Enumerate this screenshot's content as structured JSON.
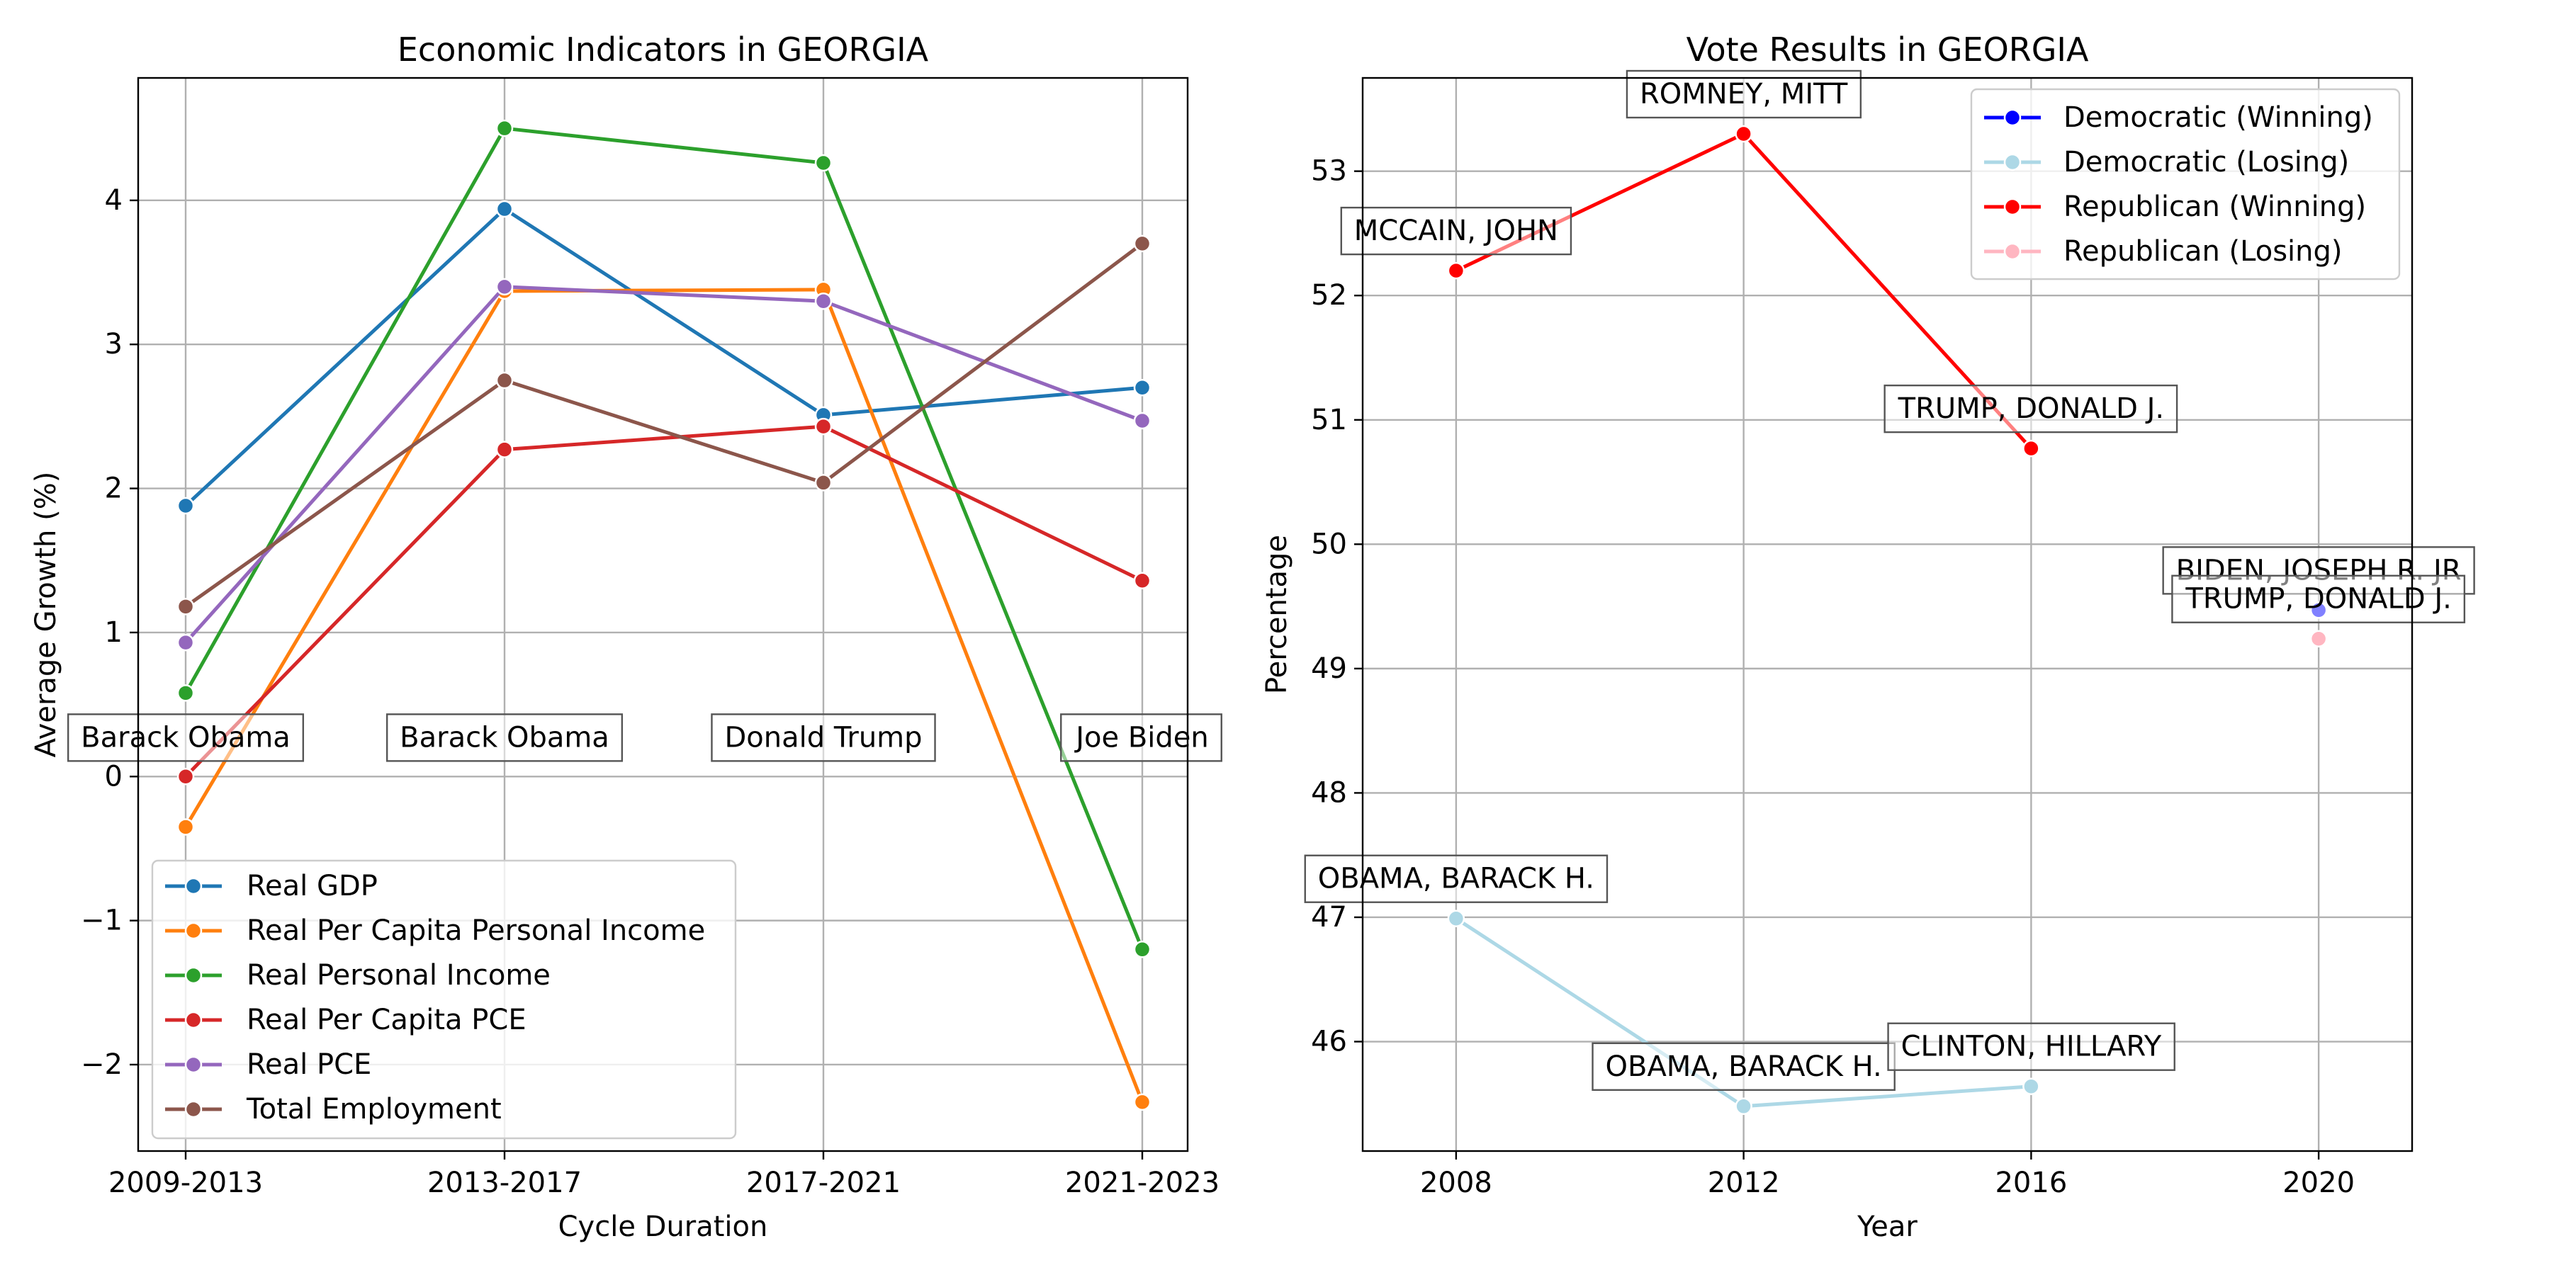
{
  "chart_data": [
    {
      "type": "line",
      "title": "Economic Indicators in GEORGIA",
      "xlabel": "Cycle Duration",
      "ylabel": "Average Growth (%)",
      "categories": [
        "2009-2013",
        "2013-2017",
        "2017-2021",
        "2021-2023"
      ],
      "ylim": [
        -2.6,
        4.85
      ],
      "yticks": [
        -2,
        -1,
        0,
        1,
        2,
        3,
        4
      ],
      "ytick_labels": [
        "−2",
        "−1",
        "0",
        "1",
        "2",
        "3",
        "4"
      ],
      "grid": true,
      "legend_position": "lower-left",
      "series": [
        {
          "name": "Real GDP",
          "color": "#1f77b4",
          "values": [
            1.88,
            3.94,
            2.51,
            2.7
          ]
        },
        {
          "name": "Real Per Capita Personal Income",
          "color": "#ff7f0e",
          "values": [
            -0.35,
            3.37,
            3.38,
            -2.26
          ]
        },
        {
          "name": "Real Personal Income",
          "color": "#2ca02c",
          "values": [
            0.58,
            4.5,
            4.26,
            -1.2
          ]
        },
        {
          "name": "Real Per Capita PCE",
          "color": "#d62728",
          "values": [
            0.0,
            2.27,
            2.43,
            1.36
          ]
        },
        {
          "name": "Real PCE",
          "color": "#9467bd",
          "values": [
            0.93,
            3.4,
            3.3,
            2.47
          ]
        },
        {
          "name": "Total Employment",
          "color": "#8c564b",
          "values": [
            1.18,
            2.75,
            2.04,
            3.7
          ]
        }
      ],
      "annotations": [
        {
          "text": "Barack Obama",
          "category": "2009-2013",
          "y": 0.27
        },
        {
          "text": "Barack Obama",
          "category": "2013-2017",
          "y": 0.27
        },
        {
          "text": "Donald Trump",
          "category": "2017-2021",
          "y": 0.27
        },
        {
          "text": "Joe Biden",
          "category": "2021-2023",
          "y": 0.27
        }
      ]
    },
    {
      "type": "line",
      "title": "Vote Results in GEORGIA",
      "xlabel": "Year",
      "ylabel": "Percentage",
      "x": [
        2008,
        2012,
        2016,
        2020
      ],
      "xlim": [
        2006.7,
        2021.3
      ],
      "ylim": [
        45.12,
        53.75
      ],
      "yticks": [
        46,
        47,
        48,
        49,
        50,
        51,
        52,
        53
      ],
      "grid": true,
      "legend_position": "top-right",
      "series": [
        {
          "name": "Democratic (Winning)",
          "color": "#0000ff",
          "points": [
            [
              2020,
              49.47
            ]
          ]
        },
        {
          "name": "Democratic (Losing)",
          "color": "#add8e6",
          "points": [
            [
              2008,
              46.99
            ],
            [
              2012,
              45.48
            ],
            [
              2016,
              45.64
            ]
          ]
        },
        {
          "name": "Republican (Winning)",
          "color": "#ff0000",
          "points": [
            [
              2008,
              52.2
            ],
            [
              2012,
              53.3
            ],
            [
              2016,
              50.77
            ]
          ]
        },
        {
          "name": "Republican (Losing)",
          "color": "#ffb6c1",
          "points": [
            [
              2020,
              49.24
            ]
          ]
        }
      ],
      "annotations": [
        {
          "text": "ROMNEY, MITT",
          "x": 2012,
          "y": 53.3
        },
        {
          "text": "MCCAIN, JOHN",
          "x": 2008,
          "y": 52.2
        },
        {
          "text": "TRUMP, DONALD J.",
          "x": 2016,
          "y": 50.77
        },
        {
          "text": "BIDEN, JOSEPH R. JR",
          "x": 2020,
          "y": 49.47
        },
        {
          "text": "TRUMP, DONALD J.",
          "x": 2020,
          "y": 49.24
        },
        {
          "text": "OBAMA, BARACK H.",
          "x": 2008,
          "y": 46.99
        },
        {
          "text": "OBAMA, BARACK H.",
          "x": 2012,
          "y": 45.48
        },
        {
          "text": "CLINTON, HILLARY",
          "x": 2016,
          "y": 45.64
        }
      ]
    }
  ]
}
